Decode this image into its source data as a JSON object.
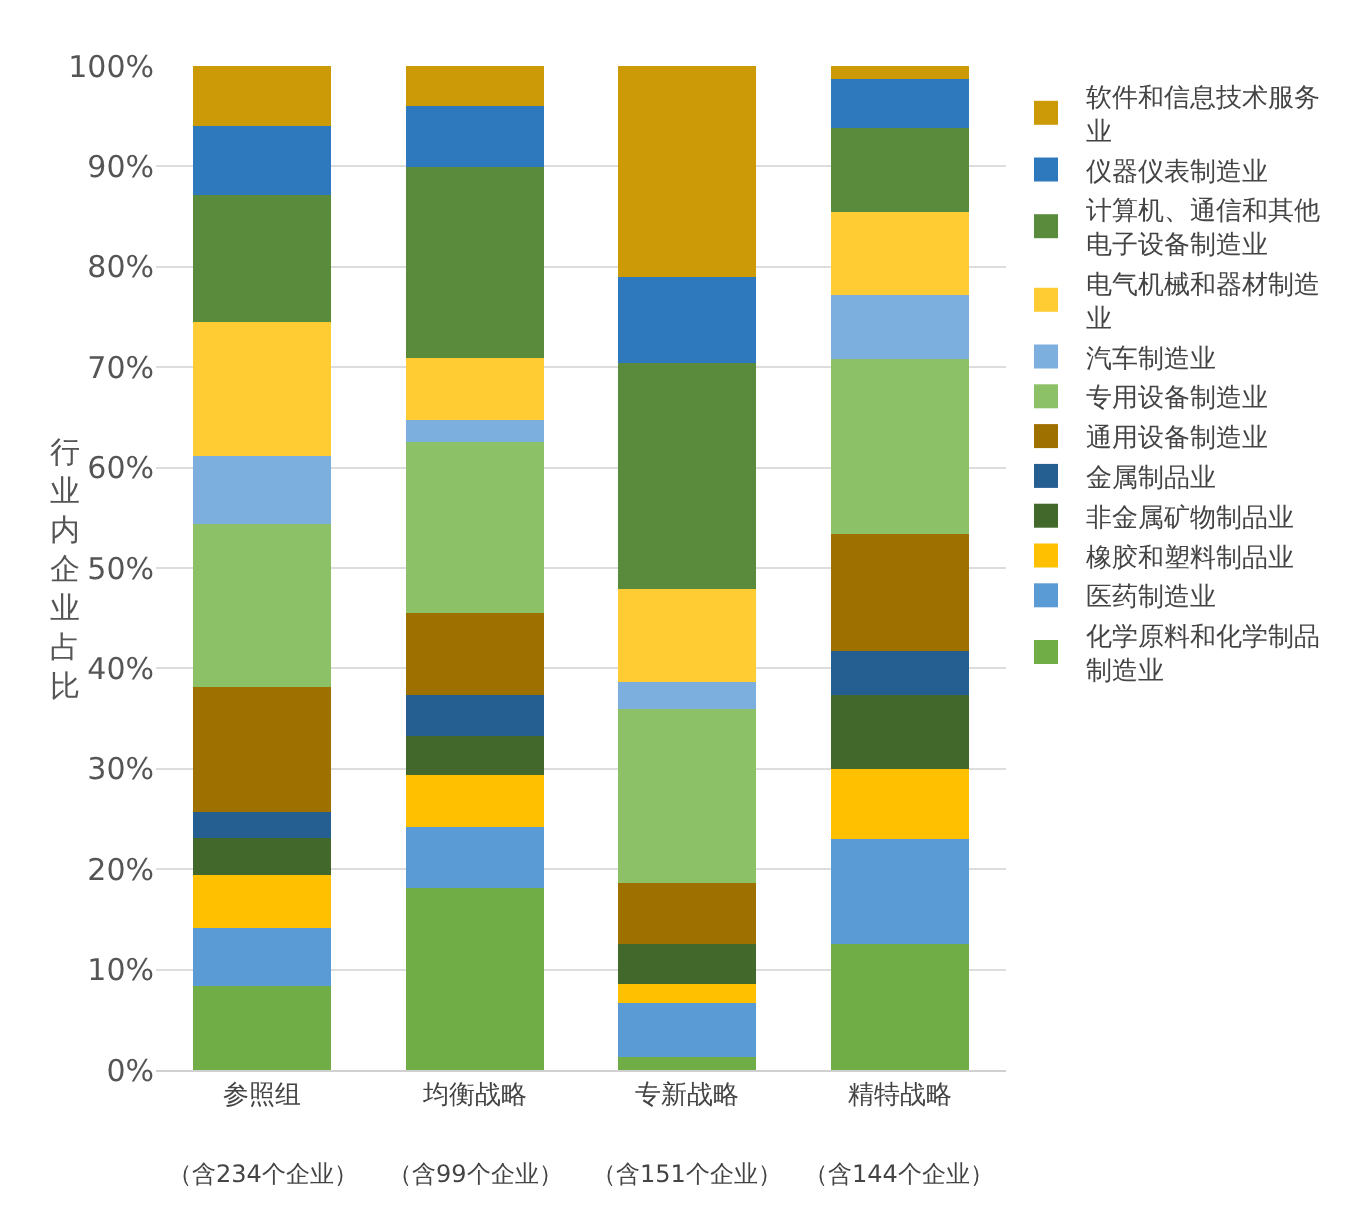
{
  "chart_data": {
    "type": "bar",
    "stacked": true,
    "categories": [
      "参照组",
      "均衡战略",
      "专新战略",
      "精特战略"
    ],
    "annotations": [
      "（含234个企业）",
      "（含99个企业）",
      "（含151个企业）",
      "（含144个企业）"
    ],
    "ylabel": "行业内企业占比",
    "ylim": [
      0,
      100
    ],
    "yticks": [
      {
        "value": 0,
        "label": "0%"
      },
      {
        "value": 10,
        "label": "10%"
      },
      {
        "value": 20,
        "label": "20%"
      },
      {
        "value": 30,
        "label": "30%"
      },
      {
        "value": 40,
        "label": "40%"
      },
      {
        "value": 50,
        "label": "50%"
      },
      {
        "value": 60,
        "label": "60%"
      },
      {
        "value": 70,
        "label": "70%"
      },
      {
        "value": 80,
        "label": "80%"
      },
      {
        "value": 90,
        "label": "90%"
      },
      {
        "value": 100,
        "label": "100%"
      }
    ],
    "grid": "y",
    "legend": "right",
    "series": [
      {
        "name": "化学原料和化学制品制造业",
        "color": "#70ad47",
        "values": [
          8.4,
          18.1,
          1.3,
          12.6
        ]
      },
      {
        "name": "医药制造业",
        "color": "#5b9bd5",
        "values": [
          5.7,
          6.1,
          5.4,
          10.4
        ]
      },
      {
        "name": "橡胶和塑料制品业",
        "color": "#ffc000",
        "values": [
          5.3,
          5.2,
          1.9,
          7.0
        ]
      },
      {
        "name": "非金属矿物制品业",
        "color": "#43682b",
        "values": [
          3.7,
          3.9,
          4.0,
          7.4
        ]
      },
      {
        "name": "金属制品业",
        "color": "#255e91",
        "values": [
          2.6,
          4.1,
          0,
          4.3
        ]
      },
      {
        "name": "通用设备制造业",
        "color": "#9e7000",
        "values": [
          12.4,
          8.1,
          6.0,
          11.7
        ]
      },
      {
        "name": "专用设备制造业",
        "color": "#8cc168",
        "values": [
          16.3,
          17.1,
          17.4,
          17.4
        ]
      },
      {
        "name": "汽车制造业",
        "color": "#7cafdd",
        "values": [
          6.8,
          2.1,
          2.6,
          6.4
        ]
      },
      {
        "name": "电气机械和器材制造业",
        "color": "#ffcd33",
        "values": [
          13.3,
          6.2,
          9.3,
          8.3
        ]
      },
      {
        "name": "计算机、通信和其他电子设备制造业",
        "color": "#5a8a3c",
        "values": [
          12.7,
          19.0,
          22.5,
          8.3
        ]
      },
      {
        "name": "仪器仪表制造业",
        "color": "#2e78be",
        "values": [
          6.8,
          6.1,
          8.6,
          4.9
        ]
      },
      {
        "name": "软件和信息技术服务业",
        "color": "#cc9a06",
        "values": [
          6.0,
          4.0,
          21.0,
          1.3
        ]
      }
    ]
  }
}
